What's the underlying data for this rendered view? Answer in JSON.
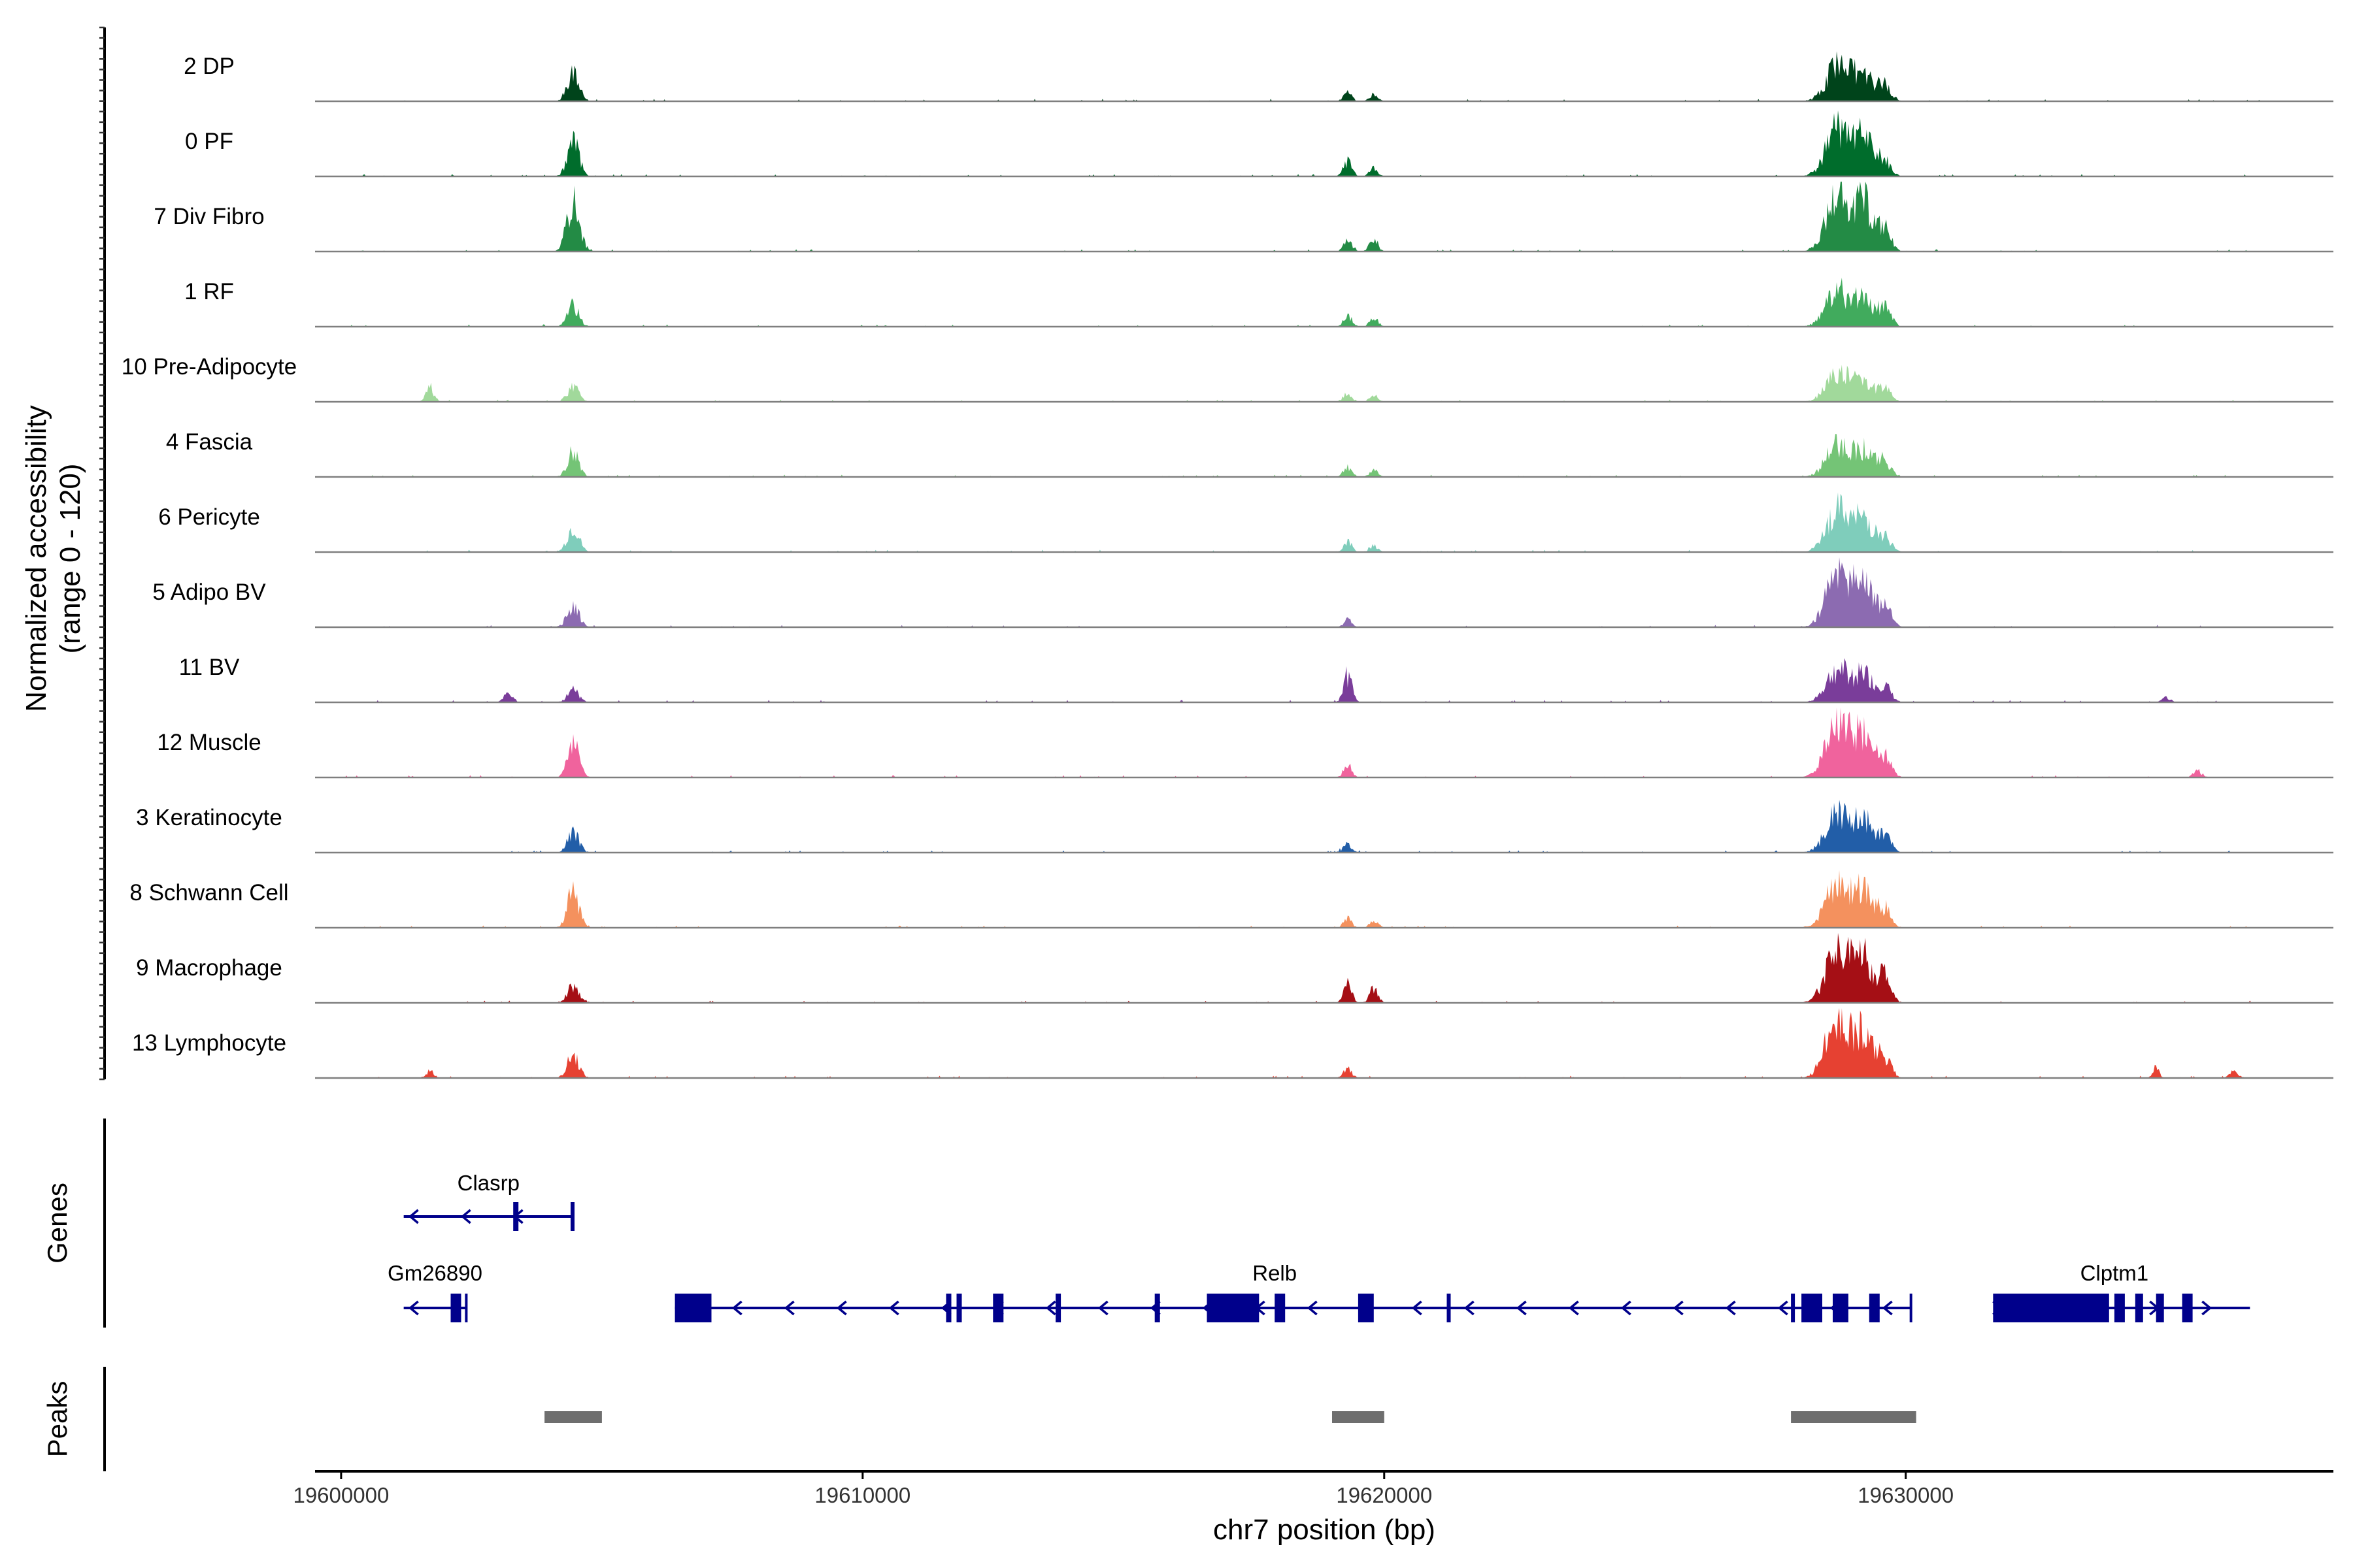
{
  "chart_data": {
    "type": "area",
    "title": "",
    "ylabel_lines": [
      "Normalized accessibility",
      "(range 0 - 120)"
    ],
    "ylim": [
      0,
      120
    ],
    "xlabel": "chr7 position (bp)",
    "xlim": [
      19599500,
      19638200
    ],
    "x_ticks": [
      19600000,
      19610000,
      19620000,
      19630000
    ],
    "x_tick_labels": [
      "19600000",
      "19610000",
      "19620000",
      "19630000"
    ],
    "tracks": [
      {
        "name": "2 DP",
        "color": "#00441b",
        "peaks": [
          [
            19604450,
            50,
            110
          ],
          [
            19619300,
            14,
            80
          ],
          [
            19619800,
            11,
            80
          ],
          [
            19628700,
            62,
            220
          ],
          [
            19629200,
            48,
            180
          ],
          [
            19629600,
            25,
            120
          ]
        ]
      },
      {
        "name": "0 PF",
        "color": "#006d2c",
        "peaks": [
          [
            19604450,
            60,
            110
          ],
          [
            19619300,
            25,
            80
          ],
          [
            19619800,
            15,
            80
          ],
          [
            19628700,
            80,
            220
          ],
          [
            19629200,
            65,
            180
          ],
          [
            19629600,
            25,
            120
          ]
        ]
      },
      {
        "name": "7 Div Fibro",
        "color": "#238b45",
        "peaks": [
          [
            19604450,
            85,
            120
          ],
          [
            19619300,
            18,
            80
          ],
          [
            19619800,
            20,
            80
          ],
          [
            19628700,
            95,
            220
          ],
          [
            19629200,
            80,
            180
          ],
          [
            19629600,
            35,
            120
          ]
        ]
      },
      {
        "name": "1 RF",
        "color": "#41ab5d",
        "peaks": [
          [
            19604450,
            35,
            110
          ],
          [
            19619300,
            18,
            80
          ],
          [
            19619800,
            15,
            80
          ],
          [
            19628700,
            60,
            220
          ],
          [
            19629200,
            45,
            180
          ],
          [
            19629600,
            30,
            120
          ]
        ]
      },
      {
        "name": "10 Pre-Adipocyte",
        "color": "#a1d99b",
        "peaks": [
          [
            19601700,
            25,
            80
          ],
          [
            19604450,
            25,
            110
          ],
          [
            19619300,
            15,
            80
          ],
          [
            19619800,
            12,
            80
          ],
          [
            19628700,
            50,
            220
          ],
          [
            19629200,
            35,
            180
          ],
          [
            19629600,
            20,
            120
          ]
        ]
      },
      {
        "name": "4 Fascia",
        "color": "#74c476",
        "peaks": [
          [
            19604450,
            40,
            110
          ],
          [
            19619300,
            18,
            80
          ],
          [
            19619800,
            12,
            80
          ],
          [
            19628700,
            55,
            220
          ],
          [
            19629200,
            45,
            180
          ],
          [
            19629600,
            25,
            120
          ]
        ]
      },
      {
        "name": "6 Pericyte",
        "color": "#7fcdbb",
        "peaks": [
          [
            19604450,
            45,
            110
          ],
          [
            19619300,
            18,
            80
          ],
          [
            19619800,
            12,
            80
          ],
          [
            19628700,
            70,
            220
          ],
          [
            19629200,
            55,
            180
          ],
          [
            19629600,
            25,
            120
          ]
        ]
      },
      {
        "name": "5 Adipo BV",
        "color": "#8c6bb1",
        "peaks": [
          [
            19604450,
            40,
            110
          ],
          [
            19619300,
            12,
            80
          ],
          [
            19628700,
            95,
            220
          ],
          [
            19629200,
            70,
            180
          ],
          [
            19629600,
            35,
            120
          ]
        ]
      },
      {
        "name": "11 BV",
        "color": "#7a3d9a",
        "peaks": [
          [
            19603200,
            15,
            80
          ],
          [
            19604450,
            20,
            110
          ],
          [
            19619300,
            45,
            80
          ],
          [
            19628700,
            55,
            220
          ],
          [
            19629200,
            45,
            180
          ],
          [
            19629600,
            25,
            120
          ],
          [
            19635000,
            8,
            80
          ]
        ]
      },
      {
        "name": "12 Muscle",
        "color": "#f0639d",
        "peaks": [
          [
            19604450,
            60,
            110
          ],
          [
            19619300,
            20,
            80
          ],
          [
            19628700,
            95,
            220
          ],
          [
            19629200,
            70,
            180
          ],
          [
            19629600,
            35,
            120
          ],
          [
            19635600,
            12,
            80
          ]
        ]
      },
      {
        "name": "3 Keratinocyte",
        "color": "#225ea8",
        "peaks": [
          [
            19604450,
            35,
            110
          ],
          [
            19619300,
            15,
            80
          ],
          [
            19628700,
            65,
            220
          ],
          [
            19629200,
            55,
            180
          ],
          [
            19629600,
            30,
            120
          ]
        ]
      },
      {
        "name": "8 Schwann Cell",
        "color": "#f4915e",
        "peaks": [
          [
            19604450,
            60,
            110
          ],
          [
            19619300,
            15,
            80
          ],
          [
            19619800,
            12,
            80
          ],
          [
            19628700,
            80,
            220
          ],
          [
            19629200,
            60,
            180
          ],
          [
            19629600,
            30,
            120
          ]
        ]
      },
      {
        "name": "9 Macrophage",
        "color": "#a50f15",
        "peaks": [
          [
            19604450,
            30,
            110
          ],
          [
            19619300,
            30,
            80
          ],
          [
            19619800,
            25,
            80
          ],
          [
            19628700,
            95,
            220
          ],
          [
            19629200,
            75,
            180
          ],
          [
            19629600,
            40,
            120
          ]
        ]
      },
      {
        "name": "13 Lymphocyte",
        "color": "#e64132",
        "peaks": [
          [
            19601700,
            12,
            80
          ],
          [
            19604450,
            40,
            110
          ],
          [
            19619300,
            15,
            80
          ],
          [
            19628700,
            105,
            220
          ],
          [
            19629200,
            70,
            180
          ],
          [
            19629600,
            35,
            120
          ],
          [
            19634800,
            20,
            60
          ],
          [
            19636300,
            12,
            80
          ]
        ]
      }
    ],
    "genes_title": "Genes",
    "genes": [
      {
        "name": "Clasrp",
        "row": 0,
        "start": 19601200,
        "end": 19604450,
        "strand": "-",
        "exons": [
          [
            19603300,
            19603400
          ],
          [
            19604400,
            19604450
          ]
        ]
      },
      {
        "name": "Gm26890",
        "row": 1,
        "start": 19601200,
        "end": 19602400,
        "strand": "-",
        "exons": [
          [
            19602100,
            19602300
          ]
        ]
      },
      {
        "name": "Relb",
        "row": 1,
        "start": 19606400,
        "end": 19630100,
        "strand": "-",
        "exons": [
          [
            19606400,
            19607100
          ],
          [
            19611600,
            19611700
          ],
          [
            19611800,
            19611900
          ],
          [
            19612500,
            19612700
          ],
          [
            19613700,
            19613800
          ],
          [
            19615600,
            19615700
          ],
          [
            19616600,
            19617600
          ],
          [
            19617900,
            19618100
          ],
          [
            19619500,
            19619800
          ],
          [
            19621200,
            19621250
          ],
          [
            19627800,
            19627850
          ],
          [
            19628000,
            19628400
          ],
          [
            19628600,
            19628900
          ],
          [
            19629300,
            19629500
          ]
        ]
      },
      {
        "name": "Clptm1",
        "row": 1,
        "start": 19631700,
        "end": 19636600,
        "strand": "+",
        "exons": [
          [
            19631700,
            19633900
          ],
          [
            19634000,
            19634200
          ],
          [
            19634400,
            19634550
          ],
          [
            19634800,
            19634950
          ],
          [
            19635300,
            19635500
          ]
        ]
      }
    ],
    "peaks_title": "Peaks",
    "peak_regions": [
      [
        19603900,
        19605000
      ],
      [
        19619000,
        19620000
      ],
      [
        19627800,
        19630200
      ]
    ]
  }
}
